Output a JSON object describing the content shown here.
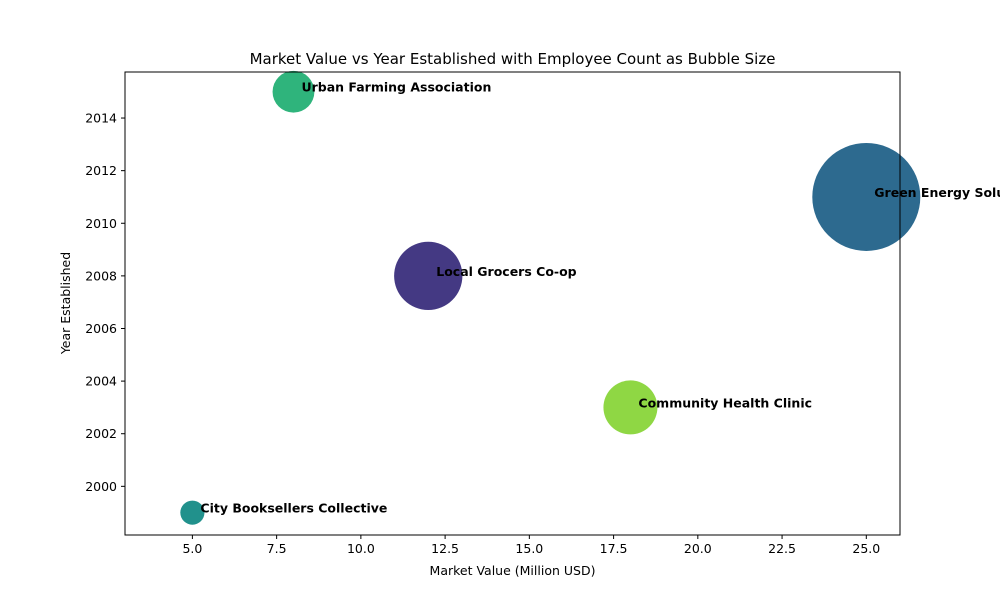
{
  "chart_data": {
    "type": "scatter",
    "title": "Market Value vs Year Established with Employee Count as Bubble Size",
    "xlabel": "Market Value (Million USD)",
    "ylabel": "Year Established",
    "xlim": [
      3.0,
      26.0
    ],
    "ylim": [
      1998.15,
      2015.75
    ],
    "xticks": [
      "5.0",
      "7.5",
      "10.0",
      "12.5",
      "15.0",
      "17.5",
      "20.0",
      "22.5",
      "25.0"
    ],
    "xtick_values": [
      5.0,
      7.5,
      10.0,
      12.5,
      15.0,
      17.5,
      20.0,
      22.5,
      25.0
    ],
    "yticks": [
      "2000",
      "2002",
      "2004",
      "2006",
      "2008",
      "2010",
      "2012",
      "2014"
    ],
    "ytick_values": [
      2000,
      2002,
      2004,
      2006,
      2008,
      2010,
      2012,
      2014
    ],
    "grid": false,
    "points": [
      {
        "label": "Local Grocers Co-op",
        "x": 12,
        "y": 2008,
        "size": 40,
        "color": "#443983"
      },
      {
        "label": "Green Energy Solutions",
        "x": 25,
        "y": 2011,
        "size": 100,
        "color": "#2d6a8f"
      },
      {
        "label": "Urban Farming Association",
        "x": 8,
        "y": 2015,
        "size": 15,
        "color": "#2fb47c"
      },
      {
        "label": "City Booksellers Collective",
        "x": 5,
        "y": 1999,
        "size": 5,
        "color": "#21918c"
      },
      {
        "label": "Community Health Clinic",
        "x": 18,
        "y": 2003,
        "size": 25,
        "color": "#8fd744"
      }
    ]
  }
}
